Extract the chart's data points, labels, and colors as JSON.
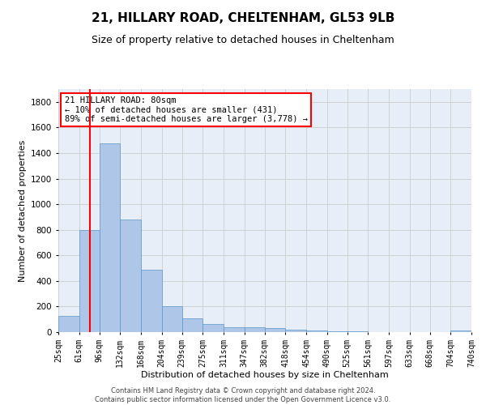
{
  "title": "21, HILLARY ROAD, CHELTENHAM, GL53 9LB",
  "subtitle": "Size of property relative to detached houses in Cheltenham",
  "xlabel": "Distribution of detached houses by size in Cheltenham",
  "ylabel": "Number of detached properties",
  "footer_line1": "Contains HM Land Registry data © Crown copyright and database right 2024.",
  "footer_line2": "Contains public sector information licensed under the Open Government Licence v3.0.",
  "annotation_title": "21 HILLARY ROAD: 80sqm",
  "annotation_line2": "← 10% of detached houses are smaller (431)",
  "annotation_line3": "89% of semi-detached houses are larger (3,778) →",
  "bar_left_edges": [
    25,
    61,
    96,
    132,
    168,
    204,
    239,
    275,
    311,
    347,
    382,
    418,
    454,
    490,
    525,
    561,
    597,
    633,
    668,
    704
  ],
  "bar_widths": [
    36,
    35,
    36,
    36,
    36,
    35,
    36,
    36,
    36,
    35,
    36,
    36,
    36,
    35,
    36,
    36,
    36,
    35,
    36,
    36
  ],
  "bar_heights": [
    125,
    800,
    1475,
    880,
    490,
    205,
    105,
    65,
    40,
    35,
    30,
    20,
    15,
    8,
    5,
    3,
    2,
    1,
    1,
    15
  ],
  "bar_color": "#aec6e8",
  "bar_edge_color": "#5a96c8",
  "red_line_x": 80,
  "ylim": [
    0,
    1900
  ],
  "yticks": [
    0,
    200,
    400,
    600,
    800,
    1000,
    1200,
    1400,
    1600,
    1800
  ],
  "xtick_labels": [
    "25sqm",
    "61sqm",
    "96sqm",
    "132sqm",
    "168sqm",
    "204sqm",
    "239sqm",
    "275sqm",
    "311sqm",
    "347sqm",
    "382sqm",
    "418sqm",
    "454sqm",
    "490sqm",
    "525sqm",
    "561sqm",
    "597sqm",
    "633sqm",
    "668sqm",
    "704sqm",
    "740sqm"
  ],
  "grid_color": "#cccccc",
  "background_color": "#ffffff",
  "plot_bg_color": "#e8eef8",
  "title_fontsize": 11,
  "subtitle_fontsize": 9,
  "axis_label_fontsize": 8,
  "tick_fontsize": 7,
  "annotation_fontsize": 7.5,
  "footer_fontsize": 6
}
